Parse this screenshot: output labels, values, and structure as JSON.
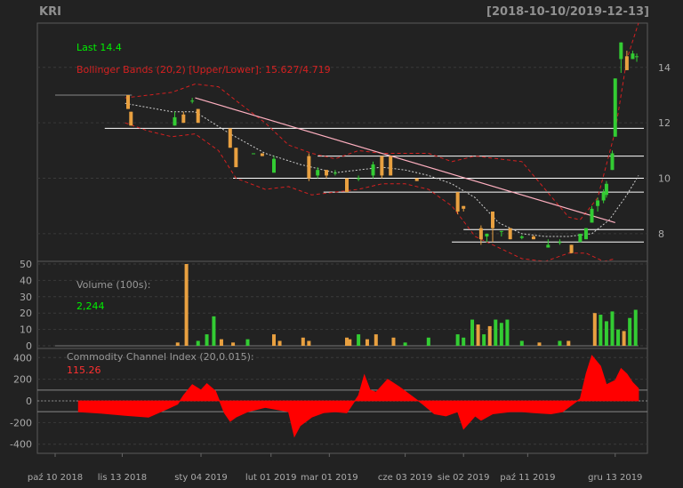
{
  "header": {
    "symbol": "KRI",
    "date_range": "[2018-10-10/2019-12-13]"
  },
  "colors": {
    "background": "#222222",
    "panel_border": "#5a5a5a",
    "grid": "#3a3a3a",
    "up": "#33cc33",
    "down": "#e8a040",
    "bbands": "#d42020",
    "sma": "#d0d0d0",
    "trendline": "#ffb0c0",
    "hline": "#ffffff",
    "cci_fill": "#ff0000",
    "last": "#00ee00",
    "text": "#aaaaaa"
  },
  "chart_data": {
    "type": "candlestick",
    "x_labels": [
      "paź 10 2018",
      "lis 13 2018",
      "sty 04 2019",
      "lut 01 2019",
      "mar 01 2019",
      "cze 03 2019",
      "sie 02 2019",
      "paź 11 2019",
      "gru 13 2019"
    ],
    "price_panel": {
      "last_label": "Last 14.4",
      "bbands_label": "Bollinger Bands (20,2) [Upper/Lower]: 15.627/4.719",
      "ylim": [
        7.1,
        15.5
      ],
      "yticks": [
        8,
        10,
        12,
        14
      ],
      "horizontal_lines": [
        {
          "y": 11.8,
          "x_from": 0.085
        },
        {
          "y": 10.8,
          "x_from": 0.45
        },
        {
          "y": 10.0,
          "x_from": 0.305
        },
        {
          "y": 9.5,
          "x_from": 0.46
        },
        {
          "y": 8.15,
          "x_from": 0.7
        },
        {
          "y": 7.7,
          "x_from": 0.68
        }
      ],
      "trendline": {
        "x0": 0.24,
        "y0": 12.9,
        "x1": 0.96,
        "y1": 8.4
      },
      "candles": [
        {
          "x": 0.04,
          "o": 13.0,
          "h": 13.0,
          "l": 13.0,
          "c": 13.0
        },
        {
          "x": 0.125,
          "o": 13.0,
          "h": 13.0,
          "l": 12.5,
          "c": 12.5
        },
        {
          "x": 0.13,
          "o": 12.4,
          "h": 12.4,
          "l": 11.9,
          "c": 11.9
        },
        {
          "x": 0.205,
          "o": 11.9,
          "h": 12.4,
          "l": 11.9,
          "c": 12.2
        },
        {
          "x": 0.22,
          "o": 12.3,
          "h": 12.4,
          "l": 12.0,
          "c": 12.0
        },
        {
          "x": 0.235,
          "o": 12.8,
          "h": 12.9,
          "l": 12.7,
          "c": 12.8
        },
        {
          "x": 0.245,
          "o": 12.5,
          "h": 12.5,
          "l": 12.0,
          "c": 12.0
        },
        {
          "x": 0.3,
          "o": 11.8,
          "h": 11.8,
          "l": 11.1,
          "c": 11.1
        },
        {
          "x": 0.31,
          "o": 11.1,
          "h": 11.1,
          "l": 10.4,
          "c": 10.4
        },
        {
          "x": 0.34,
          "o": 10.9,
          "h": 10.9,
          "l": 10.9,
          "c": 10.9
        },
        {
          "x": 0.355,
          "o": 10.9,
          "h": 10.9,
          "l": 10.8,
          "c": 10.8
        },
        {
          "x": 0.375,
          "o": 10.2,
          "h": 10.8,
          "l": 10.2,
          "c": 10.7
        },
        {
          "x": 0.435,
          "o": 10.8,
          "h": 10.9,
          "l": 9.9,
          "c": 10.0
        },
        {
          "x": 0.45,
          "o": 10.1,
          "h": 10.4,
          "l": 10.0,
          "c": 10.3
        },
        {
          "x": 0.465,
          "o": 10.3,
          "h": 10.3,
          "l": 10.0,
          "c": 10.1
        },
        {
          "x": 0.48,
          "o": 10.2,
          "h": 10.3,
          "l": 10.1,
          "c": 10.2
        },
        {
          "x": 0.5,
          "o": 10.0,
          "h": 10.0,
          "l": 9.5,
          "c": 9.5
        },
        {
          "x": 0.52,
          "o": 10.0,
          "h": 10.1,
          "l": 9.9,
          "c": 10.0
        },
        {
          "x": 0.545,
          "o": 10.1,
          "h": 10.6,
          "l": 10.0,
          "c": 10.5
        },
        {
          "x": 0.56,
          "o": 10.8,
          "h": 10.8,
          "l": 10.0,
          "c": 10.1
        },
        {
          "x": 0.575,
          "o": 10.8,
          "h": 10.8,
          "l": 10.1,
          "c": 10.1
        },
        {
          "x": 0.62,
          "o": 10.0,
          "h": 10.0,
          "l": 9.9,
          "c": 9.9
        },
        {
          "x": 0.69,
          "o": 9.5,
          "h": 9.5,
          "l": 8.7,
          "c": 8.8
        },
        {
          "x": 0.7,
          "o": 9.0,
          "h": 9.0,
          "l": 8.8,
          "c": 8.9
        },
        {
          "x": 0.73,
          "o": 8.2,
          "h": 8.3,
          "l": 7.6,
          "c": 7.8
        },
        {
          "x": 0.74,
          "o": 7.9,
          "h": 8.0,
          "l": 7.7,
          "c": 8.0
        },
        {
          "x": 0.75,
          "o": 8.8,
          "h": 8.8,
          "l": 7.7,
          "c": 8.2
        },
        {
          "x": 0.765,
          "o": 8.1,
          "h": 8.1,
          "l": 7.9,
          "c": 8.1
        },
        {
          "x": 0.78,
          "o": 8.2,
          "h": 8.2,
          "l": 7.8,
          "c": 7.8
        },
        {
          "x": 0.8,
          "o": 7.85,
          "h": 7.95,
          "l": 7.8,
          "c": 7.9
        },
        {
          "x": 0.82,
          "o": 7.9,
          "h": 7.95,
          "l": 7.8,
          "c": 7.8
        },
        {
          "x": 0.845,
          "o": 7.5,
          "h": 7.8,
          "l": 7.5,
          "c": 7.6
        },
        {
          "x": 0.865,
          "o": 7.7,
          "h": 7.8,
          "l": 7.6,
          "c": 7.7
        },
        {
          "x": 0.885,
          "o": 7.6,
          "h": 7.6,
          "l": 7.3,
          "c": 7.3
        },
        {
          "x": 0.9,
          "o": 7.7,
          "h": 8.0,
          "l": 7.7,
          "c": 8.0
        },
        {
          "x": 0.91,
          "o": 7.8,
          "h": 8.2,
          "l": 7.8,
          "c": 8.2
        },
        {
          "x": 0.92,
          "o": 8.4,
          "h": 9.0,
          "l": 8.4,
          "c": 8.9
        },
        {
          "x": 0.93,
          "o": 9.0,
          "h": 9.3,
          "l": 8.8,
          "c": 9.2
        },
        {
          "x": 0.94,
          "o": 9.2,
          "h": 9.6,
          "l": 9.1,
          "c": 9.5
        },
        {
          "x": 0.945,
          "o": 9.4,
          "h": 9.9,
          "l": 9.3,
          "c": 9.8
        },
        {
          "x": 0.955,
          "o": 10.3,
          "h": 11.0,
          "l": 10.3,
          "c": 10.9
        },
        {
          "x": 0.96,
          "o": 11.5,
          "h": 13.6,
          "l": 11.5,
          "c": 13.6
        },
        {
          "x": 0.97,
          "o": 14.3,
          "h": 14.9,
          "l": 13.8,
          "c": 14.9
        },
        {
          "x": 0.98,
          "o": 14.4,
          "h": 14.6,
          "l": 13.9,
          "c": 13.9
        },
        {
          "x": 0.99,
          "o": 14.3,
          "h": 14.6,
          "l": 14.3,
          "c": 14.5
        },
        {
          "x": 0.997,
          "o": 14.4,
          "h": 14.5,
          "l": 14.2,
          "c": 14.4
        }
      ],
      "bb_upper": [
        [
          0.12,
          12.9
        ],
        [
          0.2,
          13.1
        ],
        [
          0.24,
          13.4
        ],
        [
          0.28,
          13.3
        ],
        [
          0.31,
          12.8
        ],
        [
          0.36,
          12.0
        ],
        [
          0.4,
          11.2
        ],
        [
          0.44,
          10.9
        ],
        [
          0.48,
          10.7
        ],
        [
          0.52,
          11.0
        ],
        [
          0.56,
          10.9
        ],
        [
          0.6,
          10.9
        ],
        [
          0.64,
          10.9
        ],
        [
          0.68,
          10.6
        ],
        [
          0.72,
          10.8
        ],
        [
          0.76,
          10.7
        ],
        [
          0.8,
          10.6
        ],
        [
          0.84,
          9.6
        ],
        [
          0.88,
          8.6
        ],
        [
          0.9,
          8.5
        ],
        [
          0.93,
          9.3
        ],
        [
          0.96,
          11.7
        ],
        [
          0.98,
          14.3
        ],
        [
          1.0,
          15.6
        ]
      ],
      "bb_lower": [
        [
          0.12,
          12.0
        ],
        [
          0.16,
          11.7
        ],
        [
          0.2,
          11.5
        ],
        [
          0.24,
          11.6
        ],
        [
          0.28,
          11.0
        ],
        [
          0.31,
          10.0
        ],
        [
          0.36,
          9.6
        ],
        [
          0.4,
          9.7
        ],
        [
          0.44,
          9.4
        ],
        [
          0.48,
          9.5
        ],
        [
          0.52,
          9.6
        ],
        [
          0.56,
          9.8
        ],
        [
          0.6,
          9.8
        ],
        [
          0.64,
          9.6
        ],
        [
          0.68,
          9.0
        ],
        [
          0.72,
          7.9
        ],
        [
          0.76,
          7.5
        ],
        [
          0.8,
          7.1
        ],
        [
          0.84,
          7.0
        ],
        [
          0.88,
          7.3
        ],
        [
          0.91,
          7.3
        ],
        [
          0.94,
          7.0
        ],
        [
          0.96,
          7.1
        ]
      ],
      "sma": [
        [
          0.12,
          12.7
        ],
        [
          0.2,
          12.4
        ],
        [
          0.24,
          12.4
        ],
        [
          0.3,
          11.6
        ],
        [
          0.36,
          10.9
        ],
        [
          0.42,
          10.5
        ],
        [
          0.48,
          10.2
        ],
        [
          0.52,
          10.3
        ],
        [
          0.56,
          10.4
        ],
        [
          0.6,
          10.3
        ],
        [
          0.64,
          10.1
        ],
        [
          0.68,
          9.8
        ],
        [
          0.72,
          9.3
        ],
        [
          0.76,
          8.4
        ],
        [
          0.8,
          8.0
        ],
        [
          0.84,
          7.9
        ],
        [
          0.88,
          7.9
        ],
        [
          0.92,
          8.0
        ],
        [
          0.95,
          8.5
        ],
        [
          0.98,
          9.4
        ],
        [
          1.0,
          10.1
        ]
      ]
    },
    "volume_panel": {
      "label": "Volume (100s):",
      "value_label": "2,244",
      "ylim": [
        0,
        50
      ],
      "yticks": [
        0,
        10,
        20,
        30,
        40,
        50
      ],
      "bars": [
        {
          "x": 0.21,
          "v": 2,
          "up": false
        },
        {
          "x": 0.225,
          "v": 50,
          "up": false
        },
        {
          "x": 0.245,
          "v": 3,
          "up": true
        },
        {
          "x": 0.26,
          "v": 7,
          "up": true
        },
        {
          "x": 0.272,
          "v": 18,
          "up": true
        },
        {
          "x": 0.285,
          "v": 4,
          "up": false
        },
        {
          "x": 0.305,
          "v": 2,
          "up": false
        },
        {
          "x": 0.33,
          "v": 4,
          "up": true
        },
        {
          "x": 0.375,
          "v": 7,
          "up": false
        },
        {
          "x": 0.385,
          "v": 3,
          "up": false
        },
        {
          "x": 0.425,
          "v": 5,
          "up": false
        },
        {
          "x": 0.435,
          "v": 3,
          "up": false
        },
        {
          "x": 0.5,
          "v": 5,
          "up": false
        },
        {
          "x": 0.505,
          "v": 4,
          "up": false
        },
        {
          "x": 0.52,
          "v": 7,
          "up": true
        },
        {
          "x": 0.535,
          "v": 4,
          "up": false
        },
        {
          "x": 0.55,
          "v": 7,
          "up": false
        },
        {
          "x": 0.58,
          "v": 5,
          "up": false
        },
        {
          "x": 0.6,
          "v": 2,
          "up": true
        },
        {
          "x": 0.64,
          "v": 5,
          "up": true
        },
        {
          "x": 0.69,
          "v": 7,
          "up": true
        },
        {
          "x": 0.7,
          "v": 5,
          "up": true
        },
        {
          "x": 0.715,
          "v": 16,
          "up": true
        },
        {
          "x": 0.725,
          "v": 13,
          "up": false
        },
        {
          "x": 0.735,
          "v": 7,
          "up": true
        },
        {
          "x": 0.745,
          "v": 12,
          "up": false
        },
        {
          "x": 0.755,
          "v": 16,
          "up": true
        },
        {
          "x": 0.765,
          "v": 14,
          "up": true
        },
        {
          "x": 0.775,
          "v": 16,
          "up": true
        },
        {
          "x": 0.8,
          "v": 3,
          "up": true
        },
        {
          "x": 0.83,
          "v": 2,
          "up": false
        },
        {
          "x": 0.865,
          "v": 3,
          "up": true
        },
        {
          "x": 0.88,
          "v": 3,
          "up": false
        },
        {
          "x": 0.925,
          "v": 20,
          "up": false
        },
        {
          "x": 0.935,
          "v": 19,
          "up": true
        },
        {
          "x": 0.945,
          "v": 15,
          "up": true
        },
        {
          "x": 0.955,
          "v": 21,
          "up": true
        },
        {
          "x": 0.965,
          "v": 10,
          "up": true
        },
        {
          "x": 0.975,
          "v": 9,
          "up": false
        },
        {
          "x": 0.985,
          "v": 17,
          "up": true
        },
        {
          "x": 0.995,
          "v": 22,
          "up": true
        }
      ]
    },
    "cci_panel": {
      "label": "Commodity Channel Index (20,0.015):",
      "value_label": "115.26",
      "ylim": [
        -460,
        460
      ],
      "yticks": [
        -400,
        -200,
        0,
        200,
        400
      ],
      "hlines": [
        100,
        -100
      ],
      "series": [
        [
          0.04,
          -100
        ],
        [
          0.08,
          -115
        ],
        [
          0.12,
          -135
        ],
        [
          0.16,
          -150
        ],
        [
          0.19,
          -80
        ],
        [
          0.21,
          -30
        ],
        [
          0.22,
          50
        ],
        [
          0.235,
          150
        ],
        [
          0.25,
          100
        ],
        [
          0.26,
          160
        ],
        [
          0.275,
          90
        ],
        [
          0.29,
          -110
        ],
        [
          0.3,
          -190
        ],
        [
          0.31,
          -150
        ],
        [
          0.33,
          -100
        ],
        [
          0.36,
          -60
        ],
        [
          0.38,
          -80
        ],
        [
          0.4,
          -100
        ],
        [
          0.41,
          -330
        ],
        [
          0.42,
          -230
        ],
        [
          0.44,
          -150
        ],
        [
          0.46,
          -110
        ],
        [
          0.48,
          -100
        ],
        [
          0.5,
          -110
        ],
        [
          0.52,
          50
        ],
        [
          0.53,
          240
        ],
        [
          0.54,
          100
        ],
        [
          0.55,
          80
        ],
        [
          0.57,
          200
        ],
        [
          0.59,
          130
        ],
        [
          0.61,
          50
        ],
        [
          0.63,
          -30
        ],
        [
          0.65,
          -120
        ],
        [
          0.67,
          -140
        ],
        [
          0.69,
          -100
        ],
        [
          0.7,
          -260
        ],
        [
          0.71,
          -200
        ],
        [
          0.72,
          -140
        ],
        [
          0.73,
          -180
        ],
        [
          0.75,
          -120
        ],
        [
          0.78,
          -100
        ],
        [
          0.8,
          -100
        ],
        [
          0.82,
          -110
        ],
        [
          0.85,
          -120
        ],
        [
          0.87,
          -100
        ],
        [
          0.9,
          20
        ],
        [
          0.91,
          250
        ],
        [
          0.92,
          420
        ],
        [
          0.935,
          320
        ],
        [
          0.945,
          150
        ],
        [
          0.96,
          190
        ],
        [
          0.97,
          300
        ],
        [
          0.98,
          250
        ],
        [
          0.99,
          170
        ],
        [
          1.0,
          115
        ]
      ]
    }
  }
}
